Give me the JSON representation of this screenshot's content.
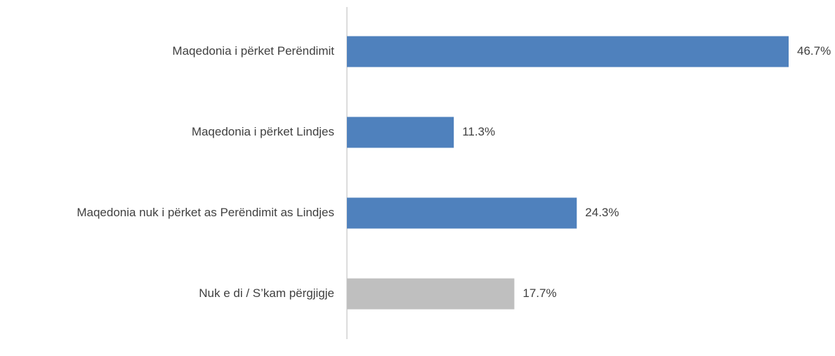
{
  "chart_data": {
    "type": "hbar",
    "categories": [
      "Maqedonia i përket Perëndimit",
      "Maqedonia i përket Lindjes",
      "Maqedonia nuk i përket as Perëndimit as Lindjes",
      "Nuk e di / S’kam përgjigje"
    ],
    "values": [
      46.7,
      11.3,
      24.3,
      17.7
    ],
    "value_labels": [
      "46.7%",
      "11.3%",
      "24.3%",
      "17.7%"
    ],
    "colors": [
      "#4f81bd",
      "#4f81bd",
      "#4f81bd",
      "#bfbfbf"
    ]
  }
}
